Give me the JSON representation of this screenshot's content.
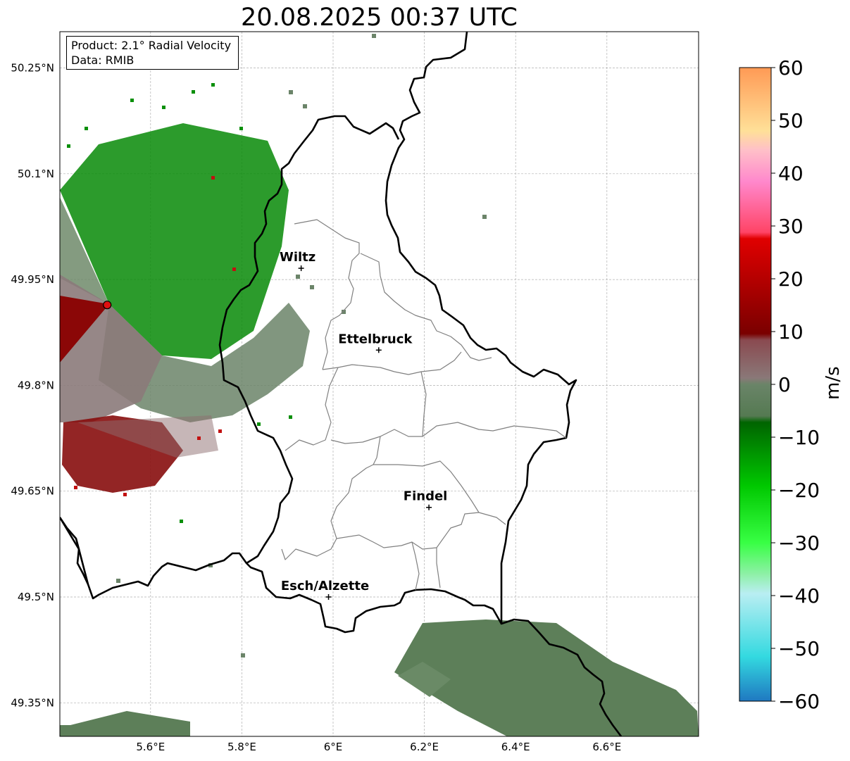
{
  "title": "20.08.2025 00:37 UTC",
  "info_box": {
    "product": "Product: 2.1° Radial Velocity",
    "source": "Data: RMIB"
  },
  "axes": {
    "lon_ticks": [
      "5.6°E",
      "5.8°E",
      "6°E",
      "6.2°E",
      "6.4°E",
      "6.6°E"
    ],
    "lat_ticks": [
      "50.25°N",
      "50.1°N",
      "49.95°N",
      "49.8°N",
      "49.65°N",
      "49.5°N",
      "49.35°N"
    ]
  },
  "cities": [
    {
      "name": "Wiltz",
      "lon": 5.93,
      "lat": 49.966
    },
    {
      "name": "Ettelbruck",
      "lon": 6.1,
      "lat": 49.85
    },
    {
      "name": "Findel",
      "lon": 6.21,
      "lat": 49.627
    },
    {
      "name": "Esch/Alzette",
      "lon": 5.99,
      "lat": 49.5
    }
  ],
  "radar_site": {
    "lon": 5.505,
    "lat": 49.914
  },
  "colorbar": {
    "label": "m/s",
    "min": -60,
    "max": 60,
    "ticks": [
      "60",
      "50",
      "40",
      "30",
      "20",
      "10",
      "0",
      "−10",
      "−20",
      "−30",
      "−40",
      "−50",
      "−60"
    ],
    "color_stops": [
      "#1f78c1",
      "#33d9e0",
      "#b9eef2",
      "#8ff0a8",
      "#38ff44",
      "#00c800",
      "#006400",
      "#5c7e58",
      "#8a7878",
      "#7a1010",
      "#e00000",
      "#ff4466",
      "#ff88cc",
      "#ffe098",
      "#ff9a55"
    ]
  },
  "chart_data": {
    "type": "map",
    "title": "20.08.2025 00:37 UTC",
    "xlabel": "",
    "ylabel": "",
    "xlim": [
      5.4,
      6.8
    ],
    "ylim": [
      49.3,
      50.3
    ],
    "xticks": [
      "5.6°E",
      "5.8°E",
      "6°E",
      "6.2°E",
      "6.4°E",
      "6.6°E"
    ],
    "yticks": [
      "50.25°N",
      "50.1°N",
      "49.95°N",
      "49.8°N",
      "49.65°N",
      "49.5°N",
      "49.35°N"
    ],
    "grid": true,
    "colorbar": {
      "label": "m/s",
      "range": [
        -60,
        60
      ]
    }
  }
}
